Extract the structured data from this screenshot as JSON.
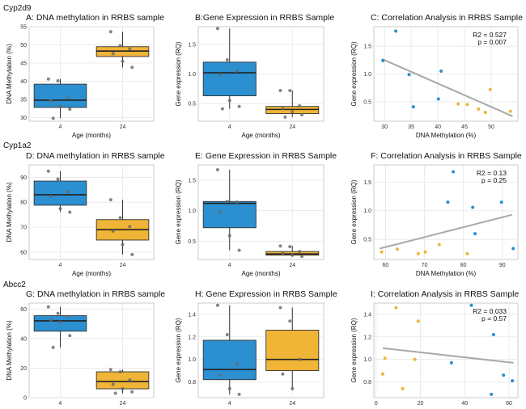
{
  "figure": {
    "gene_labels": [
      "Cyp2d9",
      "Cyp1a2",
      "Abcc2"
    ]
  },
  "colors": {
    "blue": "#2b8fd0",
    "orange": "#f0b437",
    "fit_line": "#a8a8a8",
    "grid": "#e6e6e6",
    "point_gray": "#666666"
  },
  "chart_data": [
    {
      "panel": "A",
      "type": "box",
      "title": "A: DNA methylation in RRBS sample",
      "xlabel": "Age (months)",
      "ylabel": "DNA Methylation (%)",
      "categories": [
        "4",
        "24"
      ],
      "ylim": [
        29,
        55
      ],
      "yticks": [
        30,
        35,
        40,
        45,
        50,
        55
      ],
      "boxes": [
        {
          "category": "4",
          "color": "blue",
          "q1": 32.8,
          "median": 34.8,
          "q3": 39.2,
          "whisker_low": 29.8,
          "whisker_high": 40.6,
          "points": [
            40.6,
            40.1,
            35.4,
            34.6,
            33.2,
            32.3,
            29.8
          ]
        },
        {
          "category": "24",
          "color": "orange",
          "q1": 46.8,
          "median": 48.3,
          "q3": 49.5,
          "whisker_low": 43.8,
          "whisker_high": 53.6,
          "points": [
            53.6,
            49.8,
            48.9,
            47.6,
            45.5,
            43.8
          ]
        }
      ]
    },
    {
      "panel": "B",
      "type": "box",
      "title": "B:Gene Expression in RRBS Sample",
      "xlabel": "Age (months)",
      "ylabel": "Gene expression (RQ)",
      "categories": [
        "4",
        "24"
      ],
      "ylim": [
        0.2,
        1.8
      ],
      "yticks": [
        0.5,
        1.0,
        1.5
      ],
      "boxes": [
        {
          "category": "4",
          "color": "blue",
          "q1": 0.63,
          "median": 1.02,
          "q3": 1.2,
          "whisker_low": 0.41,
          "whisker_high": 1.77,
          "points": [
            1.77,
            1.24,
            1.05,
            0.99,
            0.55,
            0.45,
            0.41
          ]
        },
        {
          "category": "24",
          "color": "orange",
          "q1": 0.33,
          "median": 0.4,
          "q3": 0.45,
          "whisker_low": 0.27,
          "whisker_high": 0.72,
          "points": [
            0.72,
            0.72,
            0.46,
            0.41,
            0.36,
            0.31,
            0.27
          ]
        }
      ]
    },
    {
      "panel": "C",
      "type": "scatter",
      "title": "C: Correlation Analysis in RRBS Sample",
      "xlabel": "DNA Methylation (%)",
      "ylabel": "Gene expression (RQ)",
      "xlim": [
        28,
        55
      ],
      "ylim": [
        0.15,
        1.85
      ],
      "xticks": [
        30,
        35,
        40,
        45,
        50
      ],
      "yticks": [
        0.5,
        1.0,
        1.5
      ],
      "r2_label": "R2 = 0.527",
      "p_label": "p = 0.007",
      "fit": {
        "x": [
          29.5,
          54.0
        ],
        "y": [
          1.27,
          0.24
        ]
      },
      "series": [
        {
          "color": "blue",
          "x": [
            29.7,
            32.1,
            34.6,
            35.4,
            40.1,
            40.6
          ],
          "y": [
            1.24,
            1.77,
            0.99,
            0.41,
            0.55,
            1.05
          ]
        },
        {
          "color": "orange",
          "x": [
            43.8,
            45.5,
            47.6,
            48.9,
            49.8,
            53.6
          ],
          "y": [
            0.46,
            0.45,
            0.37,
            0.31,
            0.72,
            0.33
          ]
        }
      ]
    },
    {
      "panel": "D",
      "type": "box",
      "title": "D: DNA methylation in RRBS sample",
      "xlabel": "Age (months)",
      "ylabel": "DNA Methylation (%)",
      "categories": [
        "4",
        "24"
      ],
      "ylim": [
        57,
        95
      ],
      "yticks": [
        60,
        70,
        80,
        90
      ],
      "boxes": [
        {
          "category": "4",
          "color": "blue",
          "q1": 78.8,
          "median": 83.0,
          "q3": 88.5,
          "whisker_low": 76.0,
          "whisker_high": 92.5,
          "points": [
            92.5,
            89.3,
            84.2,
            82.4,
            77.4,
            76.0
          ]
        },
        {
          "category": "24",
          "color": "orange",
          "q1": 64.8,
          "median": 69.0,
          "q3": 73.0,
          "whisker_low": 59.0,
          "whisker_high": 81.0,
          "points": [
            81.0,
            73.8,
            70.2,
            68.4,
            63.0,
            59.0
          ]
        }
      ]
    },
    {
      "panel": "E",
      "type": "box",
      "title": "E: Gene Expression in RRBS Sample",
      "xlabel": "Age (months)",
      "ylabel": "Gene expression (RQ)",
      "categories": [
        "4",
        "24"
      ],
      "ylim": [
        0.2,
        1.75
      ],
      "yticks": [
        0.5,
        1.0,
        1.5
      ],
      "boxes": [
        {
          "category": "4",
          "color": "blue",
          "q1": 0.72,
          "median": 1.12,
          "q3": 1.15,
          "whisker_low": 0.35,
          "whisker_high": 1.67,
          "points": [
            1.67,
            1.15,
            1.14,
            0.98,
            0.59,
            0.35
          ]
        },
        {
          "category": "24",
          "color": "orange",
          "q1": 0.27,
          "median": 0.29,
          "q3": 0.33,
          "whisker_low": 0.25,
          "whisker_high": 0.42,
          "points": [
            0.42,
            0.41,
            0.33,
            0.3,
            0.27,
            0.25
          ]
        }
      ]
    },
    {
      "panel": "F",
      "type": "scatter",
      "title": "F: Correlation Analysis in RRBS Sample",
      "xlabel": "DNA Methylation (%)",
      "ylabel": "Gene expression (RQ)",
      "xlim": [
        57,
        94
      ],
      "ylim": [
        0.15,
        1.8
      ],
      "xticks": [
        60,
        70,
        80,
        90
      ],
      "yticks": [
        0.5,
        1.0,
        1.5
      ],
      "r2_label": "R2 = 0.13",
      "p_label": "p = 0.25",
      "fit": {
        "x": [
          58.5,
          92.5
        ],
        "y": [
          0.34,
          0.93
        ]
      },
      "series": [
        {
          "color": "blue",
          "x": [
            76.0,
            77.4,
            82.4,
            83.0,
            89.8,
            92.8
          ],
          "y": [
            1.15,
            1.68,
            1.06,
            0.6,
            1.15,
            0.34
          ]
        },
        {
          "color": "orange",
          "x": [
            59.0,
            63.0,
            68.4,
            70.2,
            73.8,
            81.0
          ],
          "y": [
            0.28,
            0.33,
            0.25,
            0.28,
            0.41,
            0.25
          ]
        }
      ]
    },
    {
      "panel": "G",
      "type": "box",
      "title": "G: DNA methylation in RRBS sample",
      "xlabel": "Age (months)",
      "ylabel": "DNA Methylation (%)",
      "categories": [
        "4",
        "24"
      ],
      "ylim": [
        0,
        64
      ],
      "yticks": [
        0,
        20,
        40,
        60
      ],
      "boxes": [
        {
          "category": "4",
          "color": "blue",
          "q1": 45.0,
          "median": 52.0,
          "q3": 55.5,
          "whisker_low": 34.0,
          "whisker_high": 61.5,
          "points": [
            61.5,
            57.0,
            55.0,
            52.5,
            51.0,
            42.0,
            34.0
          ]
        },
        {
          "category": "24",
          "color": "orange",
          "q1": 6.0,
          "median": 11.0,
          "q3": 17.5,
          "whisker_low": 3.0,
          "whisker_high": 19.0,
          "points": [
            19.0,
            17.5,
            12.0,
            9.0,
            6.0,
            4.0,
            3.0
          ]
        }
      ]
    },
    {
      "panel": "H",
      "type": "box",
      "title": "H: Gene Expression in RRBS Sample",
      "xlabel": "Age (months)",
      "ylabel": "Gene expression (RQ)",
      "categories": [
        "4",
        "24"
      ],
      "ylim": [
        0.66,
        1.5
      ],
      "yticks": [
        0.8,
        1.0,
        1.2,
        1.4
      ],
      "boxes": [
        {
          "category": "4",
          "color": "blue",
          "q1": 0.82,
          "median": 0.91,
          "q3": 1.17,
          "whisker_low": 0.69,
          "whisker_high": 1.48,
          "points": [
            1.48,
            1.22,
            0.96,
            0.86,
            0.74,
            0.69
          ]
        },
        {
          "category": "24",
          "color": "orange",
          "q1": 0.9,
          "median": 1.0,
          "q3": 1.26,
          "whisker_low": 0.74,
          "whisker_high": 1.46,
          "points": [
            1.46,
            1.34,
            1.0,
            0.87,
            0.74
          ]
        }
      ]
    },
    {
      "panel": "I",
      "type": "scatter",
      "title": "I: Correlation Analysis in RRBS Sample",
      "xlabel": "DNA Methylation (%)",
      "ylabel": "Gene expression (RQ)",
      "xlim": [
        -1,
        64
      ],
      "ylim": [
        0.66,
        1.5
      ],
      "xticks": [
        0,
        20,
        40,
        60
      ],
      "yticks": [
        0.8,
        1.0,
        1.2,
        1.4
      ],
      "r2_label": "R2 = 0.033",
      "p_label": "p = 0.57",
      "fit": {
        "x": [
          3,
          62
        ],
        "y": [
          1.1,
          0.97
        ]
      },
      "series": [
        {
          "color": "blue",
          "x": [
            34.0,
            43.0,
            52.0,
            53.0,
            57.5,
            61.5
          ],
          "y": [
            0.97,
            1.48,
            0.69,
            1.22,
            0.86,
            0.81
          ]
        },
        {
          "color": "orange",
          "x": [
            3.0,
            4.0,
            9.0,
            12.0,
            17.5,
            19.0
          ],
          "y": [
            0.87,
            1.01,
            1.46,
            0.74,
            1.0,
            1.34
          ]
        }
      ]
    }
  ]
}
